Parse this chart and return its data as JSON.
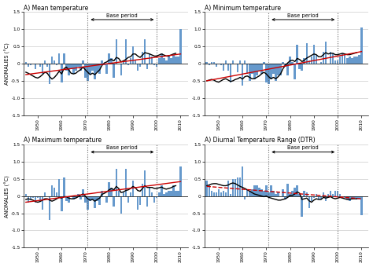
{
  "titles": [
    "A) Mean temperature",
    "A) Minimum temperature",
    "A) Maximum temperature",
    "A) Diurnal Temperature Range (DTR)"
  ],
  "ylabel": "ANOMALIES (°C)",
  "ylim": [
    -1.5,
    1.5
  ],
  "years": [
    1945,
    1946,
    1947,
    1948,
    1949,
    1950,
    1951,
    1952,
    1953,
    1954,
    1955,
    1956,
    1957,
    1958,
    1959,
    1960,
    1961,
    1962,
    1963,
    1964,
    1965,
    1966,
    1967,
    1968,
    1969,
    1970,
    1971,
    1972,
    1973,
    1974,
    1975,
    1976,
    1977,
    1978,
    1979,
    1980,
    1981,
    1982,
    1983,
    1984,
    1985,
    1986,
    1987,
    1988,
    1989,
    1990,
    1991,
    1992,
    1993,
    1994,
    1995,
    1996,
    1997,
    1998,
    1999,
    2000,
    2001,
    2002,
    2003,
    2004,
    2005,
    2006,
    2007,
    2008,
    2009,
    2010
  ],
  "bar_color": "#6699cc",
  "base_period_start": 1971,
  "base_period_end": 2000,
  "xticks": [
    1950,
    1960,
    1970,
    1980,
    1990,
    2000,
    2010
  ],
  "yticks": [
    -1.5,
    -1.0,
    -0.5,
    0.0,
    0.5,
    1.0,
    1.5
  ],
  "mean_bars": [
    0.05,
    -0.1,
    -0.05,
    0.0,
    -0.15,
    0.0,
    -0.1,
    -0.3,
    0.1,
    -0.1,
    -0.6,
    0.2,
    0.1,
    -0.05,
    0.3,
    -0.55,
    0.3,
    -0.2,
    -0.35,
    -0.15,
    -0.3,
    -0.2,
    -0.1,
    -0.2,
    0.1,
    -0.4,
    -0.5,
    -0.3,
    -0.2,
    -0.45,
    -0.25,
    -0.3,
    0.1,
    -0.05,
    -0.3,
    0.3,
    0.15,
    -0.4,
    0.7,
    0.0,
    -0.35,
    0.1,
    0.7,
    -0.05,
    0.15,
    0.5,
    0.1,
    -0.2,
    -0.1,
    0.35,
    0.7,
    -0.15,
    0.3,
    0.2,
    -0.05,
    -0.1,
    0.15,
    0.3,
    0.15,
    0.1,
    0.2,
    0.15,
    0.25,
    0.2,
    0.2,
    1.0
  ],
  "min_bars": [
    0.05,
    -0.05,
    0.05,
    0.05,
    -0.1,
    0.0,
    -0.05,
    -0.2,
    0.1,
    -0.2,
    -0.55,
    0.1,
    0.0,
    -0.25,
    0.1,
    -0.65,
    0.1,
    -0.3,
    -0.5,
    -0.3,
    -0.45,
    -0.35,
    -0.2,
    -0.3,
    0.05,
    -0.55,
    -0.6,
    -0.45,
    -0.3,
    -0.5,
    -0.35,
    -0.35,
    0.05,
    -0.1,
    -0.35,
    0.2,
    0.05,
    -0.45,
    0.55,
    -0.15,
    -0.2,
    0.15,
    0.6,
    0.1,
    0.2,
    0.55,
    0.25,
    0.0,
    0.05,
    0.35,
    0.65,
    0.0,
    0.35,
    0.3,
    0.1,
    0.1,
    0.2,
    0.3,
    0.25,
    0.15,
    0.2,
    0.15,
    0.2,
    0.2,
    0.25,
    1.05
  ],
  "max_bars": [
    0.05,
    -0.2,
    -0.1,
    -0.05,
    -0.2,
    -0.05,
    -0.15,
    -0.4,
    0.1,
    0.0,
    -0.7,
    0.3,
    0.25,
    0.1,
    0.5,
    -0.45,
    0.55,
    -0.15,
    -0.2,
    0.0,
    -0.1,
    -0.05,
    0.05,
    -0.1,
    0.2,
    -0.2,
    -0.4,
    -0.15,
    -0.1,
    -0.35,
    -0.15,
    -0.25,
    0.15,
    0.0,
    -0.2,
    0.4,
    0.25,
    -0.3,
    0.8,
    0.15,
    -0.5,
    0.1,
    0.8,
    -0.2,
    0.1,
    0.45,
    0.0,
    -0.4,
    -0.25,
    0.35,
    0.75,
    -0.3,
    0.25,
    0.1,
    -0.2,
    -0.05,
    0.1,
    0.3,
    0.05,
    0.1,
    0.15,
    0.15,
    0.3,
    0.15,
    0.15,
    0.85
  ],
  "dtr_bars": [
    0.45,
    0.3,
    0.15,
    0.1,
    0.1,
    0.2,
    0.1,
    0.15,
    0.1,
    0.45,
    0.05,
    0.5,
    0.5,
    0.55,
    0.55,
    0.85,
    -0.1,
    0.2,
    0.15,
    0.2,
    0.3,
    0.3,
    0.25,
    0.2,
    0.15,
    0.3,
    0.1,
    0.3,
    0.15,
    0.05,
    0.1,
    0.0,
    0.2,
    -0.1,
    0.35,
    0.05,
    0.15,
    0.25,
    0.3,
    0.05,
    -0.6,
    0.15,
    0.1,
    -0.35,
    -0.15,
    -0.05,
    0.05,
    -0.1,
    -0.1,
    0.1,
    -0.15,
    0.05,
    0.15,
    0.05,
    0.15,
    0.15,
    0.05,
    0.0,
    -0.05,
    -0.1,
    -0.15,
    -0.1,
    -0.05,
    -0.1,
    -0.1,
    -0.55
  ],
  "mean_smooth": [
    -0.25,
    -0.28,
    -0.32,
    -0.36,
    -0.4,
    -0.42,
    -0.38,
    -0.32,
    -0.25,
    -0.28,
    -0.38,
    -0.45,
    -0.4,
    -0.32,
    -0.22,
    -0.3,
    -0.15,
    -0.1,
    -0.18,
    -0.28,
    -0.3,
    -0.28,
    -0.22,
    -0.18,
    -0.1,
    -0.18,
    -0.25,
    -0.32,
    -0.28,
    -0.32,
    -0.25,
    -0.18,
    -0.05,
    0.02,
    0.05,
    0.1,
    0.12,
    0.08,
    0.18,
    0.15,
    0.05,
    0.08,
    0.12,
    0.18,
    0.2,
    0.28,
    0.28,
    0.22,
    0.18,
    0.25,
    0.32,
    0.3,
    0.28,
    0.25,
    0.22,
    0.22,
    0.25,
    0.28,
    0.25,
    0.22,
    0.22,
    0.25,
    0.28,
    0.3
  ],
  "min_smooth": [
    -0.5,
    -0.48,
    -0.46,
    -0.48,
    -0.52,
    -0.54,
    -0.5,
    -0.46,
    -0.44,
    -0.48,
    -0.52,
    -0.5,
    -0.46,
    -0.44,
    -0.4,
    -0.45,
    -0.38,
    -0.36,
    -0.4,
    -0.44,
    -0.44,
    -0.4,
    -0.36,
    -0.3,
    -0.25,
    -0.3,
    -0.38,
    -0.44,
    -0.4,
    -0.44,
    -0.38,
    -0.3,
    -0.15,
    -0.05,
    0.02,
    0.08,
    0.1,
    0.06,
    0.15,
    0.12,
    0.06,
    0.1,
    0.16,
    0.2,
    0.24,
    0.28,
    0.26,
    0.2,
    0.2,
    0.26,
    0.32,
    0.28,
    0.3,
    0.3,
    0.26,
    0.26,
    0.28,
    0.3,
    0.28,
    0.26,
    0.26,
    0.28,
    0.3,
    0.32
  ],
  "max_smooth": [
    -0.1,
    -0.08,
    -0.1,
    -0.12,
    -0.16,
    -0.18,
    -0.16,
    -0.12,
    -0.08,
    -0.08,
    -0.12,
    -0.15,
    -0.12,
    -0.08,
    -0.04,
    -0.06,
    -0.02,
    -0.02,
    -0.06,
    -0.08,
    -0.08,
    -0.06,
    -0.02,
    0.02,
    0.06,
    0.0,
    -0.08,
    -0.12,
    -0.1,
    -0.15,
    -0.1,
    -0.06,
    0.05,
    0.08,
    0.12,
    0.18,
    0.22,
    0.18,
    0.28,
    0.22,
    0.1,
    0.12,
    0.16,
    0.18,
    0.22,
    0.28,
    0.24,
    0.16,
    0.14,
    0.22,
    0.3,
    0.25,
    0.25,
    0.25,
    0.22,
    0.22,
    0.24,
    0.26,
    0.22,
    0.2,
    0.22,
    0.24,
    0.28,
    0.3
  ],
  "dtr_smooth": [
    0.3,
    0.32,
    0.35,
    0.36,
    0.36,
    0.34,
    0.32,
    0.3,
    0.3,
    0.32,
    0.36,
    0.38,
    0.36,
    0.32,
    0.28,
    0.25,
    0.22,
    0.18,
    0.14,
    0.1,
    0.06,
    0.04,
    0.02,
    0.0,
    -0.02,
    0.0,
    -0.04,
    -0.06,
    -0.08,
    -0.1,
    -0.12,
    -0.12,
    -0.1,
    -0.08,
    -0.04,
    0.02,
    0.02,
    0.06,
    0.12,
    0.08,
    -0.1,
    -0.08,
    -0.06,
    -0.14,
    -0.18,
    -0.12,
    -0.08,
    -0.1,
    -0.1,
    -0.04,
    -0.06,
    -0.04,
    -0.02,
    -0.06,
    -0.08,
    -0.06,
    -0.04,
    -0.06,
    -0.08,
    -0.1,
    -0.1,
    -0.08,
    -0.08,
    -0.08
  ],
  "mean_trend": [
    -0.32,
    0.28
  ],
  "min_trend": [
    -0.5,
    0.35
  ],
  "max_trend": [
    -0.18,
    0.42
  ],
  "dtr_trend": [
    0.28,
    -0.08
  ],
  "dtr_trend_dashed": true,
  "background_color": "#ffffff",
  "line_color": "#000000",
  "trend_color": "#cc0000",
  "grid_color": "#cccccc",
  "vline_color": "#666666"
}
